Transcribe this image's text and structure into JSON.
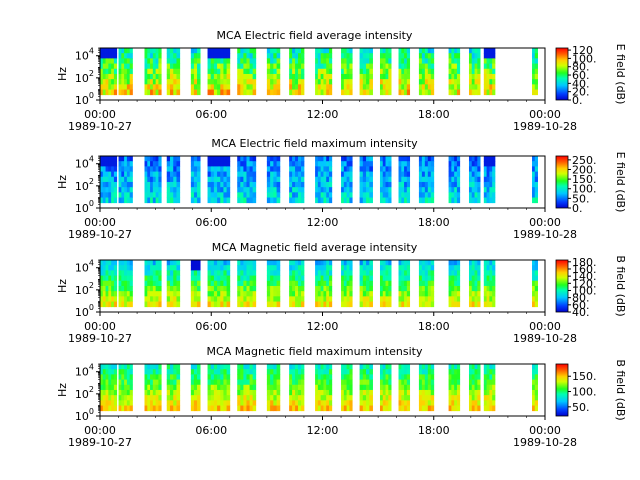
{
  "chart_data": [
    {
      "type": "heatmap",
      "title": "MCA  Electric field average intensity",
      "ylabel": "Hz",
      "y_scale": "log",
      "ylim": [
        1,
        50000
      ],
      "y_ticks": [
        {
          "value": 1,
          "base": "10",
          "exp": "0"
        },
        {
          "value": 100,
          "base": "10",
          "exp": "2"
        },
        {
          "value": 10000,
          "base": "10",
          "exp": "4"
        }
      ],
      "xlim_hours": [
        0,
        24
      ],
      "x_ticks": [
        {
          "hour": 0,
          "label": "00:00",
          "date": "1989-10-27"
        },
        {
          "hour": 6,
          "label": "06:00"
        },
        {
          "hour": 12,
          "label": "12:00"
        },
        {
          "hour": 18,
          "label": "18:00"
        },
        {
          "hour": 24,
          "label": "00:00",
          "date": "1989-10-28"
        }
      ],
      "colorbar": {
        "label": "E field (dB)",
        "range": [
          0,
          125
        ],
        "ticks": [
          {
            "value": 0,
            "label": "0."
          },
          {
            "value": 20,
            "label": "20."
          },
          {
            "value": 40,
            "label": "40."
          },
          {
            "value": 60,
            "label": "60."
          },
          {
            "value": 80,
            "label": "80."
          },
          {
            "value": 100,
            "label": "100."
          },
          {
            "value": 120,
            "label": "120"
          }
        ]
      },
      "data_segments_hours": [
        [
          0,
          0.9
        ],
        [
          1.0,
          1.75
        ],
        [
          2.4,
          3.3
        ],
        [
          3.6,
          4.3
        ],
        [
          4.9,
          5.4
        ],
        [
          5.8,
          7.0
        ],
        [
          7.4,
          8.4
        ],
        [
          9.0,
          9.7
        ],
        [
          10.2,
          11.0
        ],
        [
          11.6,
          12.5
        ],
        [
          13.0,
          13.6
        ],
        [
          14.0,
          14.7
        ],
        [
          15.1,
          15.7
        ],
        [
          16.1,
          16.7
        ],
        [
          17.2,
          18.0
        ],
        [
          18.8,
          19.4
        ],
        [
          19.9,
          20.5
        ],
        [
          20.7,
          21.3
        ],
        [
          23.3,
          23.6
        ]
      ]
    },
    {
      "type": "heatmap",
      "title": "MCA  Electric field maximum intensity",
      "ylabel": "Hz",
      "y_scale": "log",
      "ylim": [
        1,
        50000
      ],
      "y_ticks": [
        {
          "value": 1,
          "base": "10",
          "exp": "0"
        },
        {
          "value": 100,
          "base": "10",
          "exp": "2"
        },
        {
          "value": 10000,
          "base": "10",
          "exp": "4"
        }
      ],
      "xlim_hours": [
        0,
        24
      ],
      "x_ticks": [
        {
          "hour": 0,
          "label": "00:00",
          "date": "1989-10-27"
        },
        {
          "hour": 6,
          "label": "06:00"
        },
        {
          "hour": 12,
          "label": "12:00"
        },
        {
          "hour": 18,
          "label": "18:00"
        },
        {
          "hour": 24,
          "label": "00:00",
          "date": "1989-10-28"
        }
      ],
      "colorbar": {
        "label": "E field (dB)",
        "range": [
          0,
          270
        ],
        "ticks": [
          {
            "value": 0,
            "label": "0."
          },
          {
            "value": 50,
            "label": "50."
          },
          {
            "value": 100,
            "label": "100."
          },
          {
            "value": 150,
            "label": "150."
          },
          {
            "value": 200,
            "label": "200."
          },
          {
            "value": 250,
            "label": "250."
          }
        ]
      },
      "data_segments_hours": [
        [
          0,
          0.9
        ],
        [
          1.0,
          1.75
        ],
        [
          2.4,
          3.3
        ],
        [
          3.6,
          4.3
        ],
        [
          4.9,
          5.4
        ],
        [
          5.8,
          7.0
        ],
        [
          7.4,
          8.4
        ],
        [
          9.0,
          9.7
        ],
        [
          10.2,
          11.0
        ],
        [
          11.6,
          12.5
        ],
        [
          13.0,
          13.6
        ],
        [
          14.0,
          14.7
        ],
        [
          15.1,
          15.7
        ],
        [
          16.1,
          16.7
        ],
        [
          17.2,
          18.0
        ],
        [
          18.8,
          19.4
        ],
        [
          19.9,
          20.5
        ],
        [
          20.7,
          21.3
        ],
        [
          23.3,
          23.6
        ]
      ]
    },
    {
      "type": "heatmap",
      "title": "MCA  Magnetic field average intensity",
      "ylabel": "Hz",
      "y_scale": "log",
      "ylim": [
        1,
        50000
      ],
      "y_ticks": [
        {
          "value": 1,
          "base": "10",
          "exp": "0"
        },
        {
          "value": 100,
          "base": "10",
          "exp": "2"
        },
        {
          "value": 10000,
          "base": "10",
          "exp": "4"
        }
      ],
      "xlim_hours": [
        0,
        24
      ],
      "x_ticks": [
        {
          "hour": 0,
          "label": "00:00",
          "date": "1989-10-27"
        },
        {
          "hour": 6,
          "label": "06:00"
        },
        {
          "hour": 12,
          "label": "12:00"
        },
        {
          "hour": 18,
          "label": "18:00"
        },
        {
          "hour": 24,
          "label": "00:00",
          "date": "1989-10-28"
        }
      ],
      "colorbar": {
        "label": "B field (dB)",
        "range": [
          40,
          185
        ],
        "ticks": [
          {
            "value": 40,
            "label": "40."
          },
          {
            "value": 60,
            "label": "60."
          },
          {
            "value": 80,
            "label": "80."
          },
          {
            "value": 100,
            "label": "100."
          },
          {
            "value": 120,
            "label": "120."
          },
          {
            "value": 140,
            "label": "140."
          },
          {
            "value": 160,
            "label": "160."
          },
          {
            "value": 180,
            "label": "180."
          }
        ]
      },
      "data_segments_hours": [
        [
          0,
          0.9
        ],
        [
          1.0,
          1.75
        ],
        [
          2.4,
          3.3
        ],
        [
          3.6,
          4.3
        ],
        [
          4.9,
          5.4
        ],
        [
          5.8,
          7.0
        ],
        [
          7.4,
          8.4
        ],
        [
          9.0,
          9.7
        ],
        [
          10.2,
          11.0
        ],
        [
          11.6,
          12.5
        ],
        [
          13.0,
          13.6
        ],
        [
          14.0,
          14.7
        ],
        [
          15.1,
          15.7
        ],
        [
          16.1,
          16.7
        ],
        [
          17.2,
          18.0
        ],
        [
          18.8,
          19.4
        ],
        [
          19.9,
          20.5
        ],
        [
          20.7,
          21.3
        ],
        [
          23.3,
          23.6
        ]
      ]
    },
    {
      "type": "heatmap",
      "title": "MCA  Magnetic field maximum intensity",
      "ylabel": "Hz",
      "y_scale": "log",
      "ylim": [
        1,
        50000
      ],
      "y_ticks": [
        {
          "value": 1,
          "base": "10",
          "exp": "0"
        },
        {
          "value": 100,
          "base": "10",
          "exp": "2"
        },
        {
          "value": 10000,
          "base": "10",
          "exp": "4"
        }
      ],
      "xlim_hours": [
        0,
        24
      ],
      "x_ticks": [
        {
          "hour": 0,
          "label": "00:00",
          "date": "1989-10-27"
        },
        {
          "hour": 6,
          "label": "06:00"
        },
        {
          "hour": 12,
          "label": "12:00"
        },
        {
          "hour": 18,
          "label": "18:00"
        },
        {
          "hour": 24,
          "label": "00:00",
          "date": "1989-10-28"
        }
      ],
      "colorbar": {
        "label": "B field (dB)",
        "range": [
          20,
          190
        ],
        "ticks": [
          {
            "value": 50,
            "label": "50."
          },
          {
            "value": 100,
            "label": "100."
          },
          {
            "value": 150,
            "label": "150."
          }
        ]
      },
      "data_segments_hours": [
        [
          0,
          0.9
        ],
        [
          1.0,
          1.75
        ],
        [
          2.4,
          3.3
        ],
        [
          3.6,
          4.3
        ],
        [
          4.9,
          5.4
        ],
        [
          5.8,
          7.0
        ],
        [
          7.4,
          8.4
        ],
        [
          9.0,
          9.7
        ],
        [
          10.2,
          11.0
        ],
        [
          11.6,
          12.5
        ],
        [
          13.0,
          13.6
        ],
        [
          14.0,
          14.7
        ],
        [
          15.1,
          15.7
        ],
        [
          16.1,
          16.7
        ],
        [
          17.2,
          18.0
        ],
        [
          18.8,
          19.4
        ],
        [
          19.9,
          20.5
        ],
        [
          20.7,
          21.3
        ],
        [
          23.3,
          23.6
        ]
      ]
    }
  ]
}
